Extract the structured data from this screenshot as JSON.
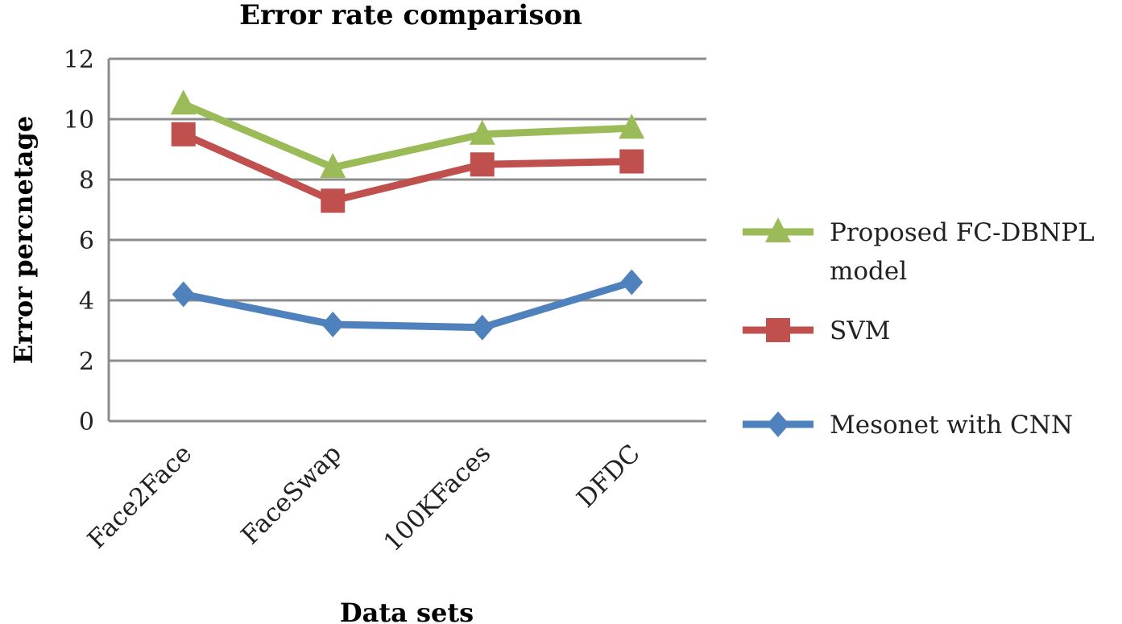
{
  "chart_data": {
    "type": "line",
    "title": "Error rate comparison",
    "xlabel": "Data sets",
    "ylabel": "Error percnetage",
    "categories": [
      "Face2Face",
      "FaceSwap",
      "100KFaces",
      "DFDC"
    ],
    "ylim": [
      0,
      12
    ],
    "yticks": [
      0,
      2,
      4,
      6,
      8,
      10,
      12
    ],
    "grid": true,
    "legend_placement": "right",
    "series": [
      {
        "name": "Proposed FC-DBNPL model",
        "name_lines": [
          "Proposed FC-DBNPL",
          "model"
        ],
        "values": [
          10.5,
          8.4,
          9.5,
          9.7
        ],
        "color": "#9BBB59",
        "marker": "triangle"
      },
      {
        "name": "SVM",
        "name_lines": [
          "SVM"
        ],
        "values": [
          9.5,
          7.3,
          8.5,
          8.6
        ],
        "color": "#C0504D",
        "marker": "square"
      },
      {
        "name": "Mesonet with CNN",
        "name_lines": [
          "Mesonet with CNN"
        ],
        "values": [
          4.2,
          3.2,
          3.1,
          4.6
        ],
        "color": "#4F81BD",
        "marker": "diamond"
      }
    ]
  }
}
